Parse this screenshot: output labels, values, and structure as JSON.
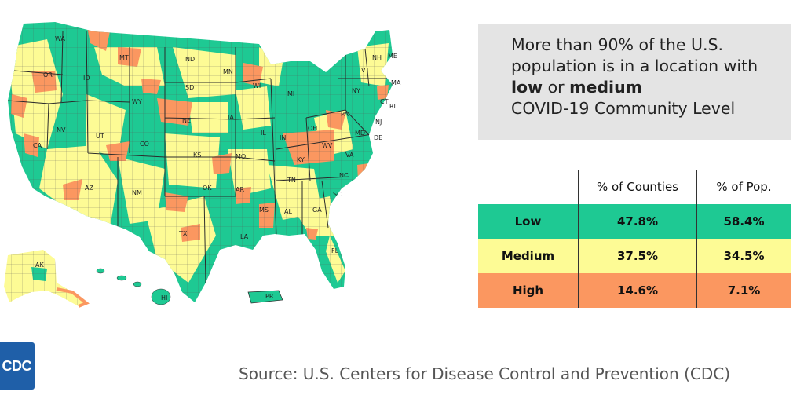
{
  "colors": {
    "low": "#1ec993",
    "medium": "#fdfb95",
    "high": "#fb9760",
    "border": "#2b2b2b"
  },
  "callout": {
    "prefix": "More than 90% of the U.S. population is in a location with ",
    "low_word": "low",
    "or_word": "or",
    "medium_word": "medium",
    "suffix": "COVID-19 Community Level"
  },
  "table": {
    "headers": [
      "",
      "% of Counties",
      "% of Pop."
    ],
    "rows": [
      {
        "level": "Low",
        "counties": "47.8%",
        "population": "58.4%"
      },
      {
        "level": "Medium",
        "counties": "37.5%",
        "population": "34.5%"
      },
      {
        "level": "High",
        "counties": "14.6%",
        "population": "7.1%"
      }
    ]
  },
  "map": {
    "state_labels": [
      "WA",
      "OR",
      "CA",
      "NV",
      "ID",
      "MT",
      "WY",
      "UT",
      "AZ",
      "CO",
      "NM",
      "ND",
      "SD",
      "NE",
      "KS",
      "OK",
      "TX",
      "MN",
      "IA",
      "MO",
      "AR",
      "LA",
      "WI",
      "IL",
      "MI",
      "IN",
      "OH",
      "KY",
      "TN",
      "MS",
      "AL",
      "GA",
      "FL",
      "SC",
      "NC",
      "VA",
      "WV",
      "PA",
      "NY",
      "ME",
      "NH",
      "VT",
      "MA",
      "CT",
      "RI",
      "NJ",
      "DE",
      "MD",
      "AK",
      "HI",
      "PR"
    ]
  },
  "source": "Source: U.S. Centers for Disease Control and Prevention (CDC)",
  "logo_text": "CDC"
}
